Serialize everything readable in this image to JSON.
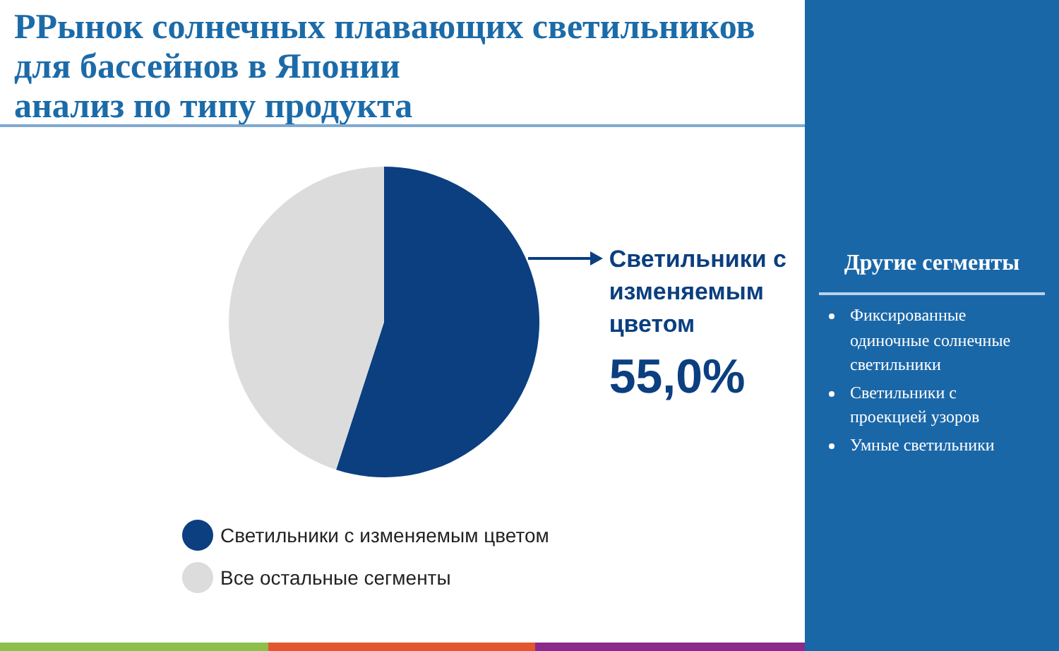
{
  "chart_data": {
    "type": "pie",
    "title": "РРынок солнечных плавающих светильников\nдля бассейнов в Японии\nанализ по типу продукта",
    "categories": [
      "Светильники с изменяемым цветом",
      "Все остальные сегменты"
    ],
    "values": [
      55,
      45
    ],
    "colors": [
      "#0b3f80",
      "#dcdcdc"
    ],
    "value_labels": [
      "55,0%",
      null
    ],
    "legend": "bottom left",
    "annotations": [
      "Другие сегменты",
      "Фиксированные одиночные солнечные светильники",
      "Светильники с проекцией узоров",
      "Умные светильники"
    ]
  }
}
